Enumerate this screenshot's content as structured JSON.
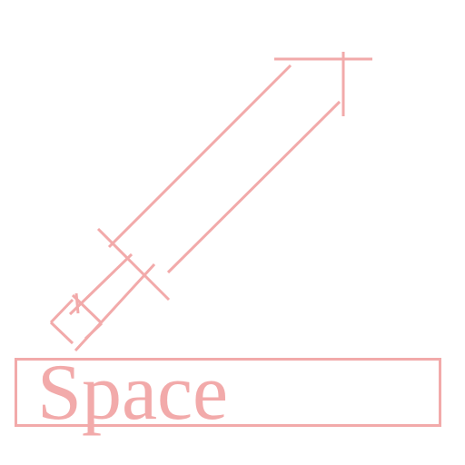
{
  "colors": {
    "accent": "#f2aaaa",
    "background": "#ffffff"
  },
  "icon": {
    "name": "space-rocket-icon"
  },
  "label": {
    "text": "Space"
  }
}
